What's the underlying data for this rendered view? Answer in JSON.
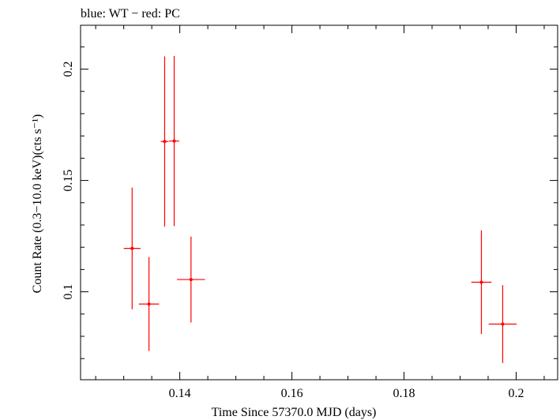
{
  "chart_data": {
    "type": "scatter",
    "title": "blue: WT − red: PC",
    "xlabel": "Time Since 57370.0 MJD (days)",
    "ylabel": "Count Rate (0.3−10.0 keV)(cts s⁻¹)",
    "xlim": [
      0.1223,
      0.2074
    ],
    "ylim": [
      0.0605,
      0.2197
    ],
    "x_ticks": [
      {
        "value": 0.14,
        "label": "0.14"
      },
      {
        "value": 0.16,
        "label": "0.16"
      },
      {
        "value": 0.18,
        "label": "0.18"
      },
      {
        "value": 0.2,
        "label": "0.2"
      }
    ],
    "y_ticks": [
      {
        "value": 0.1,
        "label": "0.1"
      },
      {
        "value": 0.15,
        "label": "0.15"
      },
      {
        "value": 0.2,
        "label": "0.2"
      }
    ],
    "grid": false,
    "series": [
      {
        "color": "#ff0000",
        "points": [
          {
            "x": 0.1315,
            "xerr": 0.0015,
            "y": 0.1195,
            "yerr_lo": 0.0273,
            "yerr_hi": 0.0273
          },
          {
            "x": 0.1345,
            "xerr": 0.0018,
            "y": 0.0945,
            "yerr_lo": 0.0211,
            "yerr_hi": 0.0211
          },
          {
            "x": 0.1373,
            "xerr": 0.0007,
            "y": 0.1675,
            "yerr_lo": 0.0382,
            "yerr_hi": 0.0382
          },
          {
            "x": 0.139,
            "xerr": 0.0009,
            "y": 0.1677,
            "yerr_lo": 0.0382,
            "yerr_hi": 0.0382
          },
          {
            "x": 0.142,
            "xerr": 0.0025,
            "y": 0.1055,
            "yerr_lo": 0.0193,
            "yerr_hi": 0.0193
          },
          {
            "x": 0.1938,
            "xerr": 0.0018,
            "y": 0.1043,
            "yerr_lo": 0.0233,
            "yerr_hi": 0.0233
          },
          {
            "x": 0.1976,
            "xerr": 0.0025,
            "y": 0.0855,
            "yerr_lo": 0.0175,
            "yerr_hi": 0.0175
          }
        ]
      }
    ]
  }
}
